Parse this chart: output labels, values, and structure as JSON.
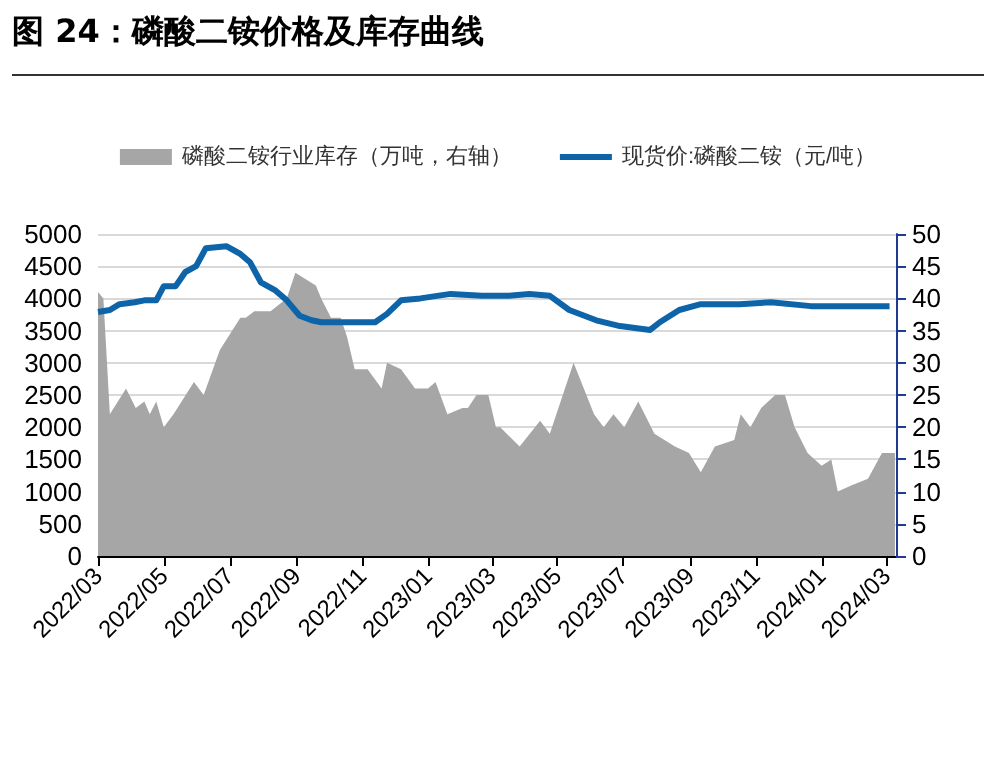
{
  "chart_data": {
    "type": "line",
    "title": "图 24：磷酸二铵价格及库存曲线",
    "xlim": [
      "2022-03-01",
      "2024-03-10"
    ],
    "xticks": [
      {
        "value": "2022-03",
        "label": "2022/03"
      },
      {
        "value": "2022-05",
        "label": "2022/05"
      },
      {
        "value": "2022-07",
        "label": "2022/07"
      },
      {
        "value": "2022-09",
        "label": "2022/09"
      },
      {
        "value": "2022-11",
        "label": "2022/11"
      },
      {
        "value": "2023-01",
        "label": "2023/01"
      },
      {
        "value": "2023-03",
        "label": "2023/03"
      },
      {
        "value": "2023-05",
        "label": "2023/05"
      },
      {
        "value": "2023-07",
        "label": "2023/07"
      },
      {
        "value": "2023-09",
        "label": "2023/09"
      },
      {
        "value": "2023-11",
        "label": "2023/11"
      },
      {
        "value": "2024-01",
        "label": "2024/01"
      },
      {
        "value": "2024-03",
        "label": "2024/03"
      }
    ],
    "ylim": [
      0,
      5000
    ],
    "yticks": [
      0,
      500,
      1000,
      1500,
      2000,
      2500,
      3000,
      3500,
      4000,
      4500,
      5000
    ],
    "y2lim": [
      0,
      50
    ],
    "y2ticks": [
      0,
      5,
      10,
      15,
      20,
      25,
      30,
      35,
      40,
      45,
      50
    ],
    "grid": "y",
    "legend": "top",
    "marker": "none",
    "line_style": "solid",
    "series": [
      {
        "name": "磷酸二铵行业库存（万吨，右轴）",
        "type": "area",
        "axis": "y2",
        "color": "#a6a6a6",
        "x": [
          "2022-03-01",
          "2022-03-06",
          "2022-03-12",
          "2022-03-27",
          "2022-04-05",
          "2022-04-13",
          "2022-04-18",
          "2022-04-24",
          "2022-05-01",
          "2022-05-10",
          "2022-05-29",
          "2022-06-07",
          "2022-06-22",
          "2022-07-11",
          "2022-07-16",
          "2022-07-24",
          "2022-08-08",
          "2022-08-23",
          "2022-08-31",
          "2022-09-19",
          "2022-09-24",
          "2022-10-03",
          "2022-10-12",
          "2022-10-18",
          "2022-10-25",
          "2022-11-06",
          "2022-11-19",
          "2022-11-24",
          "2022-12-07",
          "2022-12-20",
          "2023-01-01",
          "2023-01-08",
          "2023-01-19",
          "2023-02-02",
          "2023-02-07",
          "2023-02-15",
          "2023-02-26",
          "2023-03-05",
          "2023-03-09",
          "2023-03-27",
          "2023-04-15",
          "2023-04-24",
          "2023-05-16",
          "2023-06-04",
          "2023-06-13",
          "2023-06-22",
          "2023-07-02",
          "2023-07-15",
          "2023-07-30",
          "2023-08-18",
          "2023-08-31",
          "2023-09-11",
          "2023-09-24",
          "2023-10-12",
          "2023-10-18",
          "2023-10-27",
          "2023-11-06",
          "2023-11-19",
          "2023-11-28",
          "2023-12-07",
          "2023-12-19",
          "2024-01-01",
          "2024-01-10",
          "2024-01-16",
          "2024-01-29",
          "2024-02-13",
          "2024-02-26",
          "2024-03-09"
        ],
        "values": [
          41,
          40,
          22,
          26,
          23,
          24,
          22,
          24,
          20,
          22,
          27,
          25,
          32,
          37,
          37,
          38,
          38,
          40,
          44,
          42,
          40,
          37,
          37,
          34,
          29,
          29,
          26,
          30,
          29,
          26,
          26,
          27,
          22,
          23,
          23,
          25,
          25,
          20,
          20,
          17,
          21,
          19,
          30,
          22,
          20,
          22,
          20,
          24,
          19,
          17,
          16,
          13,
          17,
          18,
          22,
          20,
          23,
          25,
          25,
          20,
          16,
          14,
          15,
          10,
          11,
          12,
          16,
          16
        ]
      },
      {
        "name": "现货价:磷酸二铵（元/吨）",
        "color": "#0e64a8",
        "x": [
          "2022-03-01",
          "2022-03-12",
          "2022-03-21",
          "2022-04-04",
          "2022-04-13",
          "2022-04-24",
          "2022-05-01",
          "2022-05-12",
          "2022-05-21",
          "2022-05-31",
          "2022-06-09",
          "2022-06-28",
          "2022-07-11",
          "2022-07-20",
          "2022-07-30",
          "2022-08-12",
          "2022-08-23",
          "2022-09-04",
          "2022-09-15",
          "2022-09-24",
          "2022-10-12",
          "2022-11-13",
          "2022-11-24",
          "2022-12-07",
          "2022-12-25",
          "2023-01-22",
          "2023-02-20",
          "2023-03-17",
          "2023-04-05",
          "2023-04-24",
          "2023-05-12",
          "2023-06-06",
          "2023-06-28",
          "2023-07-26",
          "2023-08-04",
          "2023-08-22",
          "2023-09-11",
          "2023-10-17",
          "2023-11-15",
          "2023-12-22",
          "2024-01-19",
          "2024-03-04"
        ],
        "values": [
          3790,
          3820,
          3910,
          3940,
          3970,
          3970,
          4190,
          4190,
          4410,
          4500,
          4780,
          4810,
          4690,
          4560,
          4250,
          4130,
          3970,
          3730,
          3660,
          3630,
          3630,
          3630,
          3760,
          3970,
          4000,
          4070,
          4040,
          4040,
          4070,
          4040,
          3820,
          3660,
          3570,
          3510,
          3630,
          3820,
          3910,
          3910,
          3940,
          3880,
          3880,
          3880
        ]
      }
    ]
  }
}
